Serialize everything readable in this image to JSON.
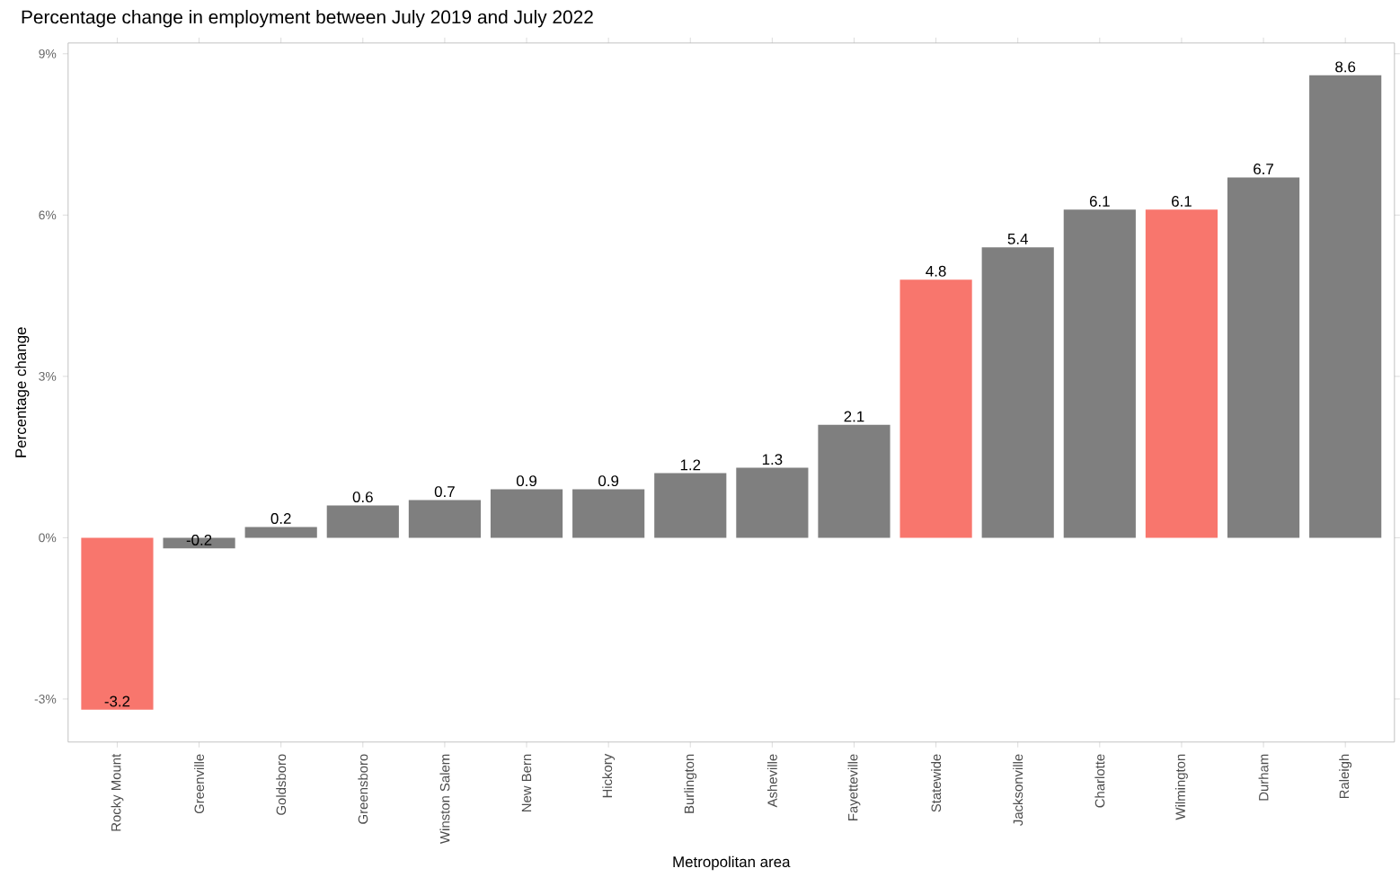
{
  "chart_data": {
    "type": "bar",
    "title": "Percentage change in employment between July 2019 and July 2022",
    "xlabel": "Metropolitan area",
    "ylabel": "Percentage change",
    "categories": [
      "Rocky Mount",
      "Greenville",
      "Goldsboro",
      "Greensboro",
      "Winston Salem",
      "New Bern",
      "Hickory",
      "Burlington",
      "Asheville",
      "Fayetteville",
      "Statewide",
      "Jacksonville",
      "Charlotte",
      "Wilmington",
      "Durham",
      "Raleigh"
    ],
    "values": [
      -3.2,
      -0.2,
      0.2,
      0.6,
      0.7,
      0.9,
      0.9,
      1.2,
      1.3,
      2.1,
      4.8,
      5.4,
      6.1,
      6.1,
      6.7,
      8.6
    ],
    "colors": [
      "#f8766d",
      "#7f7f7f",
      "#7f7f7f",
      "#7f7f7f",
      "#7f7f7f",
      "#7f7f7f",
      "#7f7f7f",
      "#7f7f7f",
      "#7f7f7f",
      "#7f7f7f",
      "#f8766d",
      "#7f7f7f",
      "#7f7f7f",
      "#f8766d",
      "#7f7f7f",
      "#7f7f7f"
    ],
    "value_labels": [
      "-3.2",
      "-0.2",
      "0.2",
      "0.6",
      "0.7",
      "0.9",
      "0.9",
      "1.2",
      "1.3",
      "2.1",
      "4.8",
      "5.4",
      "6.1",
      "6.1",
      "6.7",
      "8.6"
    ],
    "ylim": [
      -3.8,
      9.2
    ],
    "yticks": [
      {
        "value": -3,
        "label": "-3%"
      },
      {
        "value": 0,
        "label": "0%"
      },
      {
        "value": 3,
        "label": "3%"
      },
      {
        "value": 6,
        "label": "6%"
      },
      {
        "value": 9,
        "label": "9%"
      }
    ]
  }
}
